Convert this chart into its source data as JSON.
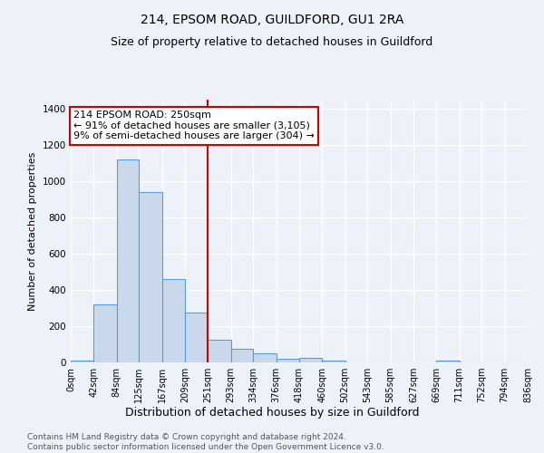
{
  "title": "214, EPSOM ROAD, GUILDFORD, GU1 2RA",
  "subtitle": "Size of property relative to detached houses in Guildford",
  "xlabel": "Distribution of detached houses by size in Guildford",
  "ylabel": "Number of detached properties",
  "footer_line1": "Contains HM Land Registry data © Crown copyright and database right 2024.",
  "footer_line2": "Contains public sector information licensed under the Open Government Licence v3.0.",
  "bar_edges": [
    0,
    42,
    84,
    125,
    167,
    209,
    251,
    293,
    334,
    376,
    418,
    460,
    502,
    543,
    585,
    627,
    669,
    711,
    752,
    794,
    836
  ],
  "bar_heights": [
    10,
    320,
    1120,
    940,
    460,
    275,
    125,
    75,
    50,
    20,
    25,
    10,
    0,
    0,
    0,
    0,
    10,
    0,
    0,
    0
  ],
  "bar_color": "#c9d9eb",
  "bar_edge_color": "#5b9bd5",
  "vline_x": 251,
  "vline_color": "#cc0000",
  "annotation_line1": "214 EPSOM ROAD: 250sqm",
  "annotation_line2": "← 91% of detached houses are smaller (3,105)",
  "annotation_line3": "9% of semi-detached houses are larger (304) →",
  "annotation_box_color": "#cc0000",
  "ylim": [
    0,
    1450
  ],
  "tick_labels": [
    "0sqm",
    "42sqm",
    "84sqm",
    "125sqm",
    "167sqm",
    "209sqm",
    "251sqm",
    "293sqm",
    "334sqm",
    "376sqm",
    "418sqm",
    "460sqm",
    "502sqm",
    "543sqm",
    "585sqm",
    "627sqm",
    "669sqm",
    "711sqm",
    "752sqm",
    "794sqm",
    "836sqm"
  ],
  "background_color": "#edf2f9",
  "grid_color": "#ffffff",
  "title_fontsize": 10,
  "subtitle_fontsize": 9,
  "xlabel_fontsize": 9,
  "ylabel_fontsize": 8,
  "tick_fontsize": 7,
  "annotation_fontsize": 8,
  "footer_fontsize": 6.5
}
